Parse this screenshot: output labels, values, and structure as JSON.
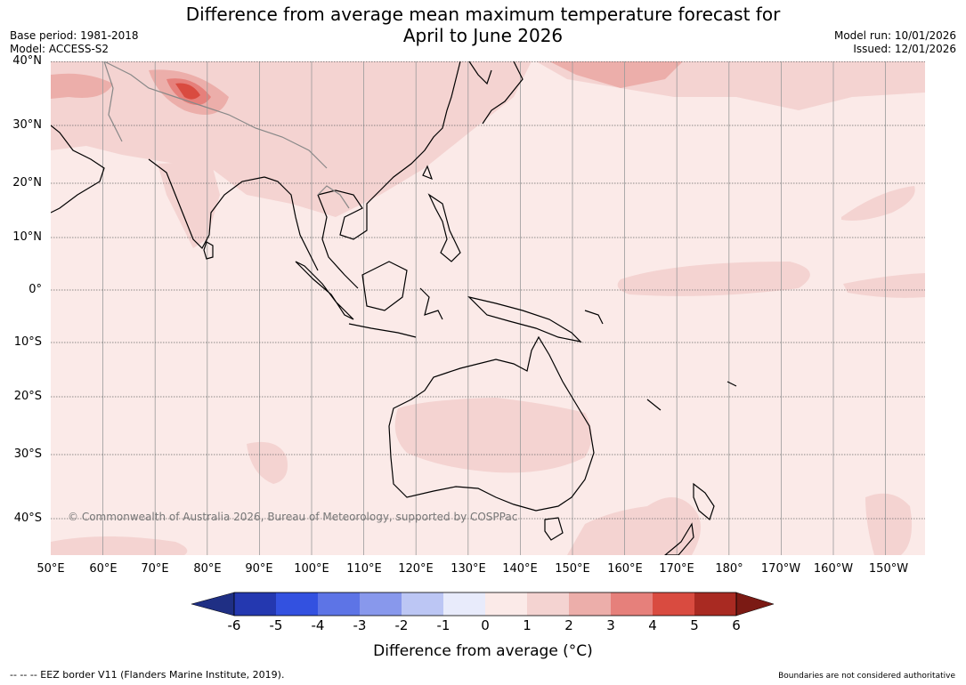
{
  "title_line1": "Difference from average mean maximum temperature forecast for",
  "title_line2": "April to June 2026",
  "meta": {
    "base_period": "Base period: 1981-2018",
    "model": "Model: ACCESS-S2",
    "model_run": "Model run: 10/01/2026",
    "issued": "Issued: 12/01/2026"
  },
  "map": {
    "lat_labels": [
      "40°N",
      "30°N",
      "20°N",
      "10°N",
      "0°",
      "10°S",
      "20°S",
      "30°S",
      "40°S"
    ],
    "lon_labels": [
      "50°E",
      "60°E",
      "70°E",
      "80°E",
      "90°E",
      "100°E",
      "110°E",
      "120°E",
      "130°E",
      "140°E",
      "150°E",
      "160°E",
      "170°E",
      "180°",
      "170°W",
      "160°W",
      "150°W"
    ],
    "credit": "© Commonwealth of Australia 2026, Bureau of Meteorology, supported by COSPPac",
    "background_color": "#fbeae8"
  },
  "colorbar": {
    "tick_labels": [
      "-6",
      "-5",
      "-4",
      "-3",
      "-2",
      "-1",
      "0",
      "1",
      "2",
      "3",
      "4",
      "5",
      "6"
    ],
    "colors": [
      "#1f2f84",
      "#2438b0",
      "#3351e0",
      "#5d74e6",
      "#8898ec",
      "#bcc6f4",
      "#e8ebfb",
      "#fbeae8",
      "#f4d3d1",
      "#ecaeaa",
      "#e6807b",
      "#d94b40",
      "#a92a22",
      "#7b1a14"
    ],
    "title": "Difference from average (°C)"
  },
  "footer": {
    "eez": "--  --  -- EEZ border V11 (Flanders Marine Institute, 2019).",
    "disclaimer": "Boundaries are not considered authoritative"
  }
}
